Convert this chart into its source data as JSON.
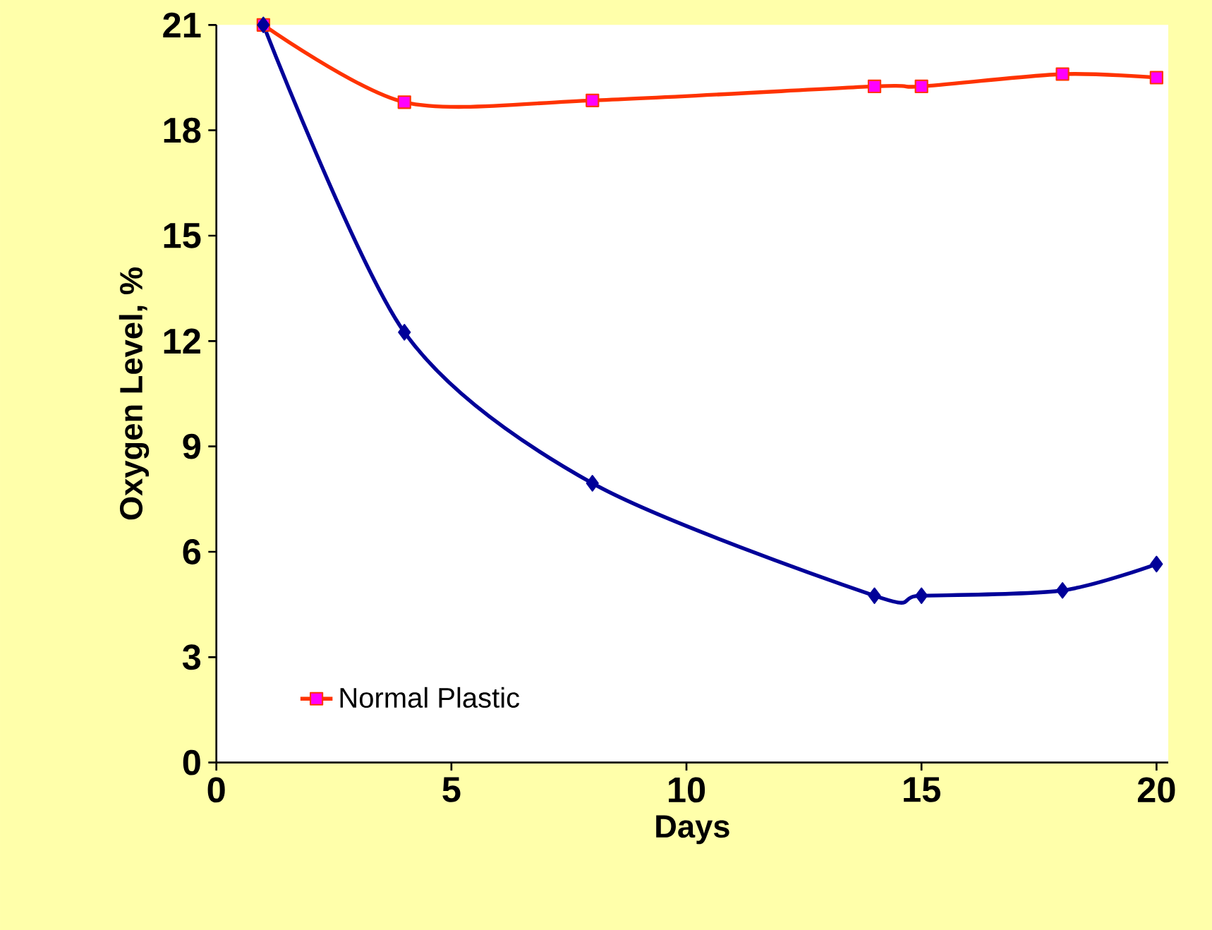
{
  "chart_data": {
    "type": "line",
    "xlabel": "Days",
    "ylabel": "Oxygen Level, %",
    "xlim": [
      0,
      20.25
    ],
    "ylim": [
      0,
      21
    ],
    "xticks": [
      0,
      5,
      10,
      15,
      20
    ],
    "yticks": [
      0,
      3,
      6,
      9,
      12,
      15,
      18,
      21
    ],
    "grid": false,
    "legend": "bottom left",
    "series": [
      {
        "color": "#000099",
        "marker": "diamond",
        "x": [
          1,
          4,
          8,
          14,
          15,
          18,
          20
        ],
        "values": [
          21,
          12.25,
          7.95,
          4.75,
          4.75,
          4.9,
          5.65
        ]
      },
      {
        "name": "Normal Plastic",
        "color": "#ff3300",
        "marker": "square",
        "x": [
          1,
          4,
          8,
          14,
          15,
          18,
          20
        ],
        "values": [
          21,
          18.8,
          18.85,
          19.25,
          19.25,
          19.6,
          19.5
        ]
      }
    ]
  }
}
